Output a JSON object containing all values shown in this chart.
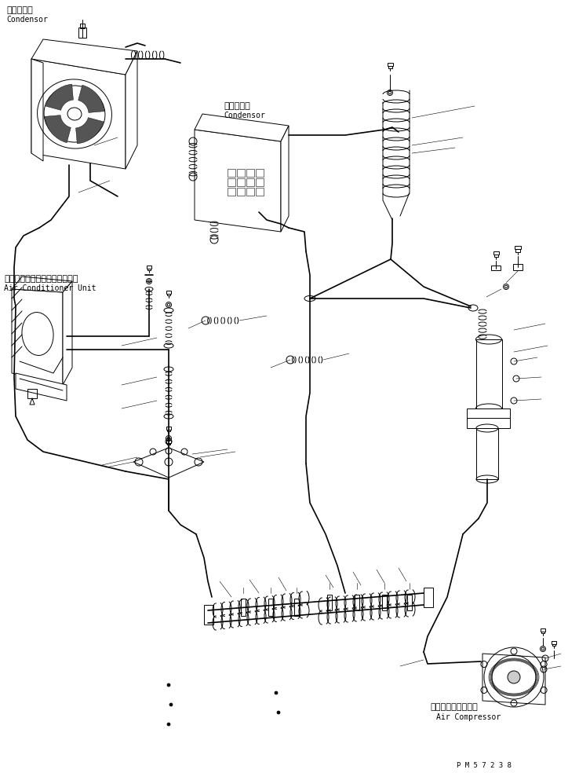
{
  "bg_color": "#ffffff",
  "line_color": "#000000",
  "lw": 0.7,
  "lw_thick": 1.2,
  "lw_thin": 0.4,
  "fig_width": 7.38,
  "fig_height": 9.84,
  "dpi": 100,
  "labels": {
    "cond_top_jp": "コンデンサ",
    "cond_top_en": "Condensor",
    "cond_mid_jp": "コンデンサ",
    "cond_mid_en": "Condensor",
    "ac_jp": "エアーコンディショナユニット",
    "ac_en": "Air Conditioner Unit",
    "comp_jp": "エアーコンプレッサ",
    "comp_en": "Air Compressor",
    "part_no": "P M 5 7 2 3 8"
  }
}
